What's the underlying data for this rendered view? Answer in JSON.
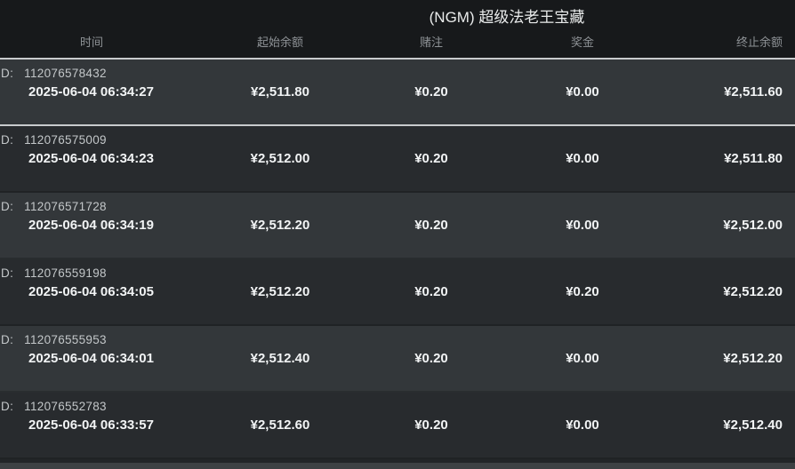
{
  "title": "(NGM) 超级法老王宝藏",
  "table": {
    "id_label": "ID:",
    "columns": [
      "时间",
      "起始余额",
      "赌注",
      "奖金",
      "终止余额"
    ],
    "rows": [
      {
        "id": "112076578432",
        "time": "2025-06-04 06:34:27",
        "start_balance": "¥2,511.80",
        "bet": "¥0.20",
        "prize": "¥0.00",
        "end_balance": "¥2,511.60"
      },
      {
        "id": "112076575009",
        "time": "2025-06-04 06:34:23",
        "start_balance": "¥2,512.00",
        "bet": "¥0.20",
        "prize": "¥0.00",
        "end_balance": "¥2,511.80"
      },
      {
        "id": "112076571728",
        "time": "2025-06-04 06:34:19",
        "start_balance": "¥2,512.20",
        "bet": "¥0.20",
        "prize": "¥0.00",
        "end_balance": "¥2,512.00"
      },
      {
        "id": "112076559198",
        "time": "2025-06-04 06:34:05",
        "start_balance": "¥2,512.20",
        "bet": "¥0.20",
        "prize": "¥0.20",
        "end_balance": "¥2,512.20"
      },
      {
        "id": "112076555953",
        "time": "2025-06-04 06:34:01",
        "start_balance": "¥2,512.40",
        "bet": "¥0.20",
        "prize": "¥0.00",
        "end_balance": "¥2,512.20"
      },
      {
        "id": "112076552783",
        "time": "2025-06-04 06:33:57",
        "start_balance": "¥2,512.60",
        "bet": "¥0.20",
        "prize": "¥0.00",
        "end_balance": "¥2,512.40"
      }
    ]
  },
  "colors": {
    "header_bg": "#17191b",
    "row_light": "#33373a",
    "row_dark": "#282b2e",
    "divider_bright": "#c8cbcd",
    "header_text": "#8e9296",
    "id_text": "#c3c7c9",
    "value_text": "#f2f4f5",
    "title_text": "#e9ebeb"
  }
}
